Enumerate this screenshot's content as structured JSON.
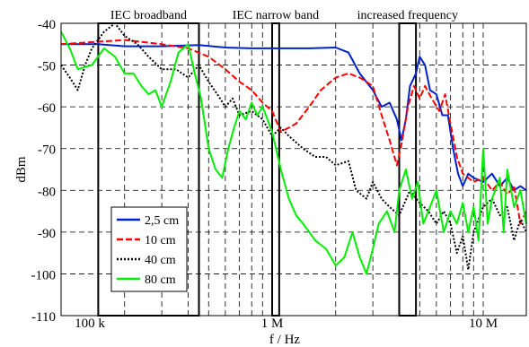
{
  "chart_data": {
    "type": "line",
    "xscale": "log",
    "xlim": [
      100000,
      16000000
    ],
    "ylim": [
      -110,
      -40
    ],
    "xlabel": "f / Hz",
    "ylabel": "dBm",
    "grid": true,
    "legend_position": "bottom-left",
    "x_tick_labels": [
      {
        "value": 100000,
        "label": "100 k"
      },
      {
        "value": 1000000,
        "label": "1 M"
      },
      {
        "value": 10000000,
        "label": "10 M"
      }
    ],
    "y_tick_labels": [
      "-40",
      "-50",
      "-60",
      "-70",
      "-80",
      "-90",
      "-100",
      "-110"
    ],
    "y_ticks": [
      -40,
      -50,
      -60,
      -70,
      -80,
      -90,
      -100,
      -110
    ],
    "annotations": [
      {
        "text": "IEC broadband",
        "x_range": [
          150000,
          450000
        ]
      },
      {
        "text": "IEC narrow band",
        "x_range": [
          1000000,
          1080000
        ]
      },
      {
        "text": "increased frequency",
        "x_range": [
          4000000,
          4800000
        ]
      }
    ],
    "series": [
      {
        "name": "2,5 cm",
        "color": "#0022cc",
        "dash": "solid",
        "points": [
          [
            100000,
            -45
          ],
          [
            150000,
            -45
          ],
          [
            200000,
            -45.5
          ],
          [
            300000,
            -45.5
          ],
          [
            450000,
            -45.2
          ],
          [
            600000,
            -45.8
          ],
          [
            800000,
            -46
          ],
          [
            1000000,
            -46
          ],
          [
            1500000,
            -46
          ],
          [
            2000000,
            -45.8
          ],
          [
            2300000,
            -47
          ],
          [
            2600000,
            -52
          ],
          [
            3000000,
            -56
          ],
          [
            3300000,
            -60
          ],
          [
            3600000,
            -59
          ],
          [
            3900000,
            -63
          ],
          [
            4100000,
            -68
          ],
          [
            4300000,
            -63
          ],
          [
            4500000,
            -55
          ],
          [
            4800000,
            -52
          ],
          [
            5000000,
            -48
          ],
          [
            5300000,
            -50
          ],
          [
            5600000,
            -56
          ],
          [
            6000000,
            -57
          ],
          [
            6400000,
            -62
          ],
          [
            6800000,
            -62
          ],
          [
            7200000,
            -70
          ],
          [
            7600000,
            -76
          ],
          [
            8000000,
            -79
          ],
          [
            8500000,
            -76
          ],
          [
            9000000,
            -77
          ],
          [
            10000000,
            -78
          ],
          [
            11000000,
            -76
          ],
          [
            12000000,
            -79
          ],
          [
            13000000,
            -77
          ],
          [
            14000000,
            -80
          ],
          [
            15000000,
            -79
          ],
          [
            16000000,
            -80
          ]
        ]
      },
      {
        "name": "10 cm",
        "color": "#ff0000",
        "dash": "dashed",
        "points": [
          [
            100000,
            -45
          ],
          [
            200000,
            -44
          ],
          [
            300000,
            -45
          ],
          [
            400000,
            -46
          ],
          [
            500000,
            -48
          ],
          [
            600000,
            -51
          ],
          [
            700000,
            -54
          ],
          [
            800000,
            -56
          ],
          [
            900000,
            -59
          ],
          [
            1000000,
            -61
          ],
          [
            1100000,
            -66
          ],
          [
            1200000,
            -65
          ],
          [
            1300000,
            -64
          ],
          [
            1500000,
            -60
          ],
          [
            1700000,
            -56
          ],
          [
            2000000,
            -53
          ],
          [
            2300000,
            -52
          ],
          [
            2600000,
            -53
          ],
          [
            3000000,
            -55
          ],
          [
            3300000,
            -62
          ],
          [
            3600000,
            -68
          ],
          [
            3900000,
            -74
          ],
          [
            4100000,
            -69
          ],
          [
            4400000,
            -60
          ],
          [
            4700000,
            -55
          ],
          [
            5000000,
            -58
          ],
          [
            5300000,
            -55
          ],
          [
            5700000,
            -58
          ],
          [
            6200000,
            -61
          ],
          [
            6600000,
            -57
          ],
          [
            7000000,
            -64
          ],
          [
            7500000,
            -72
          ],
          [
            8000000,
            -76
          ],
          [
            9000000,
            -78
          ],
          [
            10000000,
            -77
          ],
          [
            11000000,
            -80
          ],
          [
            12000000,
            -78
          ],
          [
            13000000,
            -81
          ],
          [
            14000000,
            -79
          ],
          [
            15000000,
            -88
          ],
          [
            16000000,
            -85
          ]
        ]
      },
      {
        "name": "40 cm",
        "color": "#000000",
        "dash": "dotted",
        "points": [
          [
            100000,
            -50
          ],
          [
            110000,
            -53
          ],
          [
            120000,
            -56
          ],
          [
            130000,
            -50
          ],
          [
            140000,
            -46
          ],
          [
            160000,
            -42
          ],
          [
            180000,
            -40
          ],
          [
            200000,
            -43
          ],
          [
            230000,
            -45
          ],
          [
            260000,
            -48
          ],
          [
            300000,
            -51
          ],
          [
            350000,
            -51
          ],
          [
            400000,
            -53
          ],
          [
            450000,
            -50
          ],
          [
            500000,
            -54
          ],
          [
            550000,
            -57
          ],
          [
            600000,
            -60
          ],
          [
            650000,
            -58
          ],
          [
            700000,
            -62
          ],
          [
            800000,
            -61
          ],
          [
            900000,
            -63
          ],
          [
            1000000,
            -67
          ],
          [
            1100000,
            -65
          ],
          [
            1200000,
            -67
          ],
          [
            1400000,
            -70
          ],
          [
            1600000,
            -72
          ],
          [
            1800000,
            -72
          ],
          [
            2000000,
            -74
          ],
          [
            2300000,
            -73
          ],
          [
            2500000,
            -80
          ],
          [
            2800000,
            -82
          ],
          [
            3000000,
            -78
          ],
          [
            3300000,
            -82
          ],
          [
            3600000,
            -84
          ],
          [
            4000000,
            -86
          ],
          [
            4500000,
            -80
          ],
          [
            5000000,
            -83
          ],
          [
            5500000,
            -85
          ],
          [
            6000000,
            -88
          ],
          [
            6500000,
            -85
          ],
          [
            7000000,
            -88
          ],
          [
            7500000,
            -95
          ],
          [
            8000000,
            -91
          ],
          [
            8500000,
            -99
          ],
          [
            9000000,
            -90
          ],
          [
            10000000,
            -84
          ],
          [
            11000000,
            -82
          ],
          [
            12000000,
            -86
          ],
          [
            13000000,
            -84
          ],
          [
            14000000,
            -92
          ],
          [
            15000000,
            -87
          ],
          [
            16000000,
            -90
          ]
        ]
      },
      {
        "name": "80 cm",
        "color": "#00ee00",
        "dash": "solid",
        "points": [
          [
            100000,
            -42
          ],
          [
            110000,
            -46
          ],
          [
            120000,
            -51
          ],
          [
            140000,
            -50
          ],
          [
            160000,
            -46
          ],
          [
            180000,
            -48
          ],
          [
            200000,
            -52
          ],
          [
            220000,
            -52
          ],
          [
            240000,
            -55
          ],
          [
            260000,
            -57
          ],
          [
            280000,
            -56
          ],
          [
            300000,
            -60
          ],
          [
            330000,
            -54
          ],
          [
            360000,
            -47
          ],
          [
            400000,
            -45
          ],
          [
            430000,
            -52
          ],
          [
            460000,
            -58
          ],
          [
            500000,
            -70
          ],
          [
            540000,
            -75
          ],
          [
            580000,
            -77
          ],
          [
            620000,
            -70
          ],
          [
            660000,
            -65
          ],
          [
            700000,
            -61
          ],
          [
            750000,
            -63
          ],
          [
            800000,
            -59
          ],
          [
            850000,
            -62
          ],
          [
            900000,
            -60
          ],
          [
            950000,
            -63
          ],
          [
            1000000,
            -66
          ],
          [
            1100000,
            -75
          ],
          [
            1200000,
            -82
          ],
          [
            1300000,
            -86
          ],
          [
            1400000,
            -88
          ],
          [
            1500000,
            -90
          ],
          [
            1600000,
            -92
          ],
          [
            1800000,
            -94
          ],
          [
            2000000,
            -98
          ],
          [
            2200000,
            -96
          ],
          [
            2400000,
            -90
          ],
          [
            2600000,
            -96
          ],
          [
            2800000,
            -100
          ],
          [
            3000000,
            -94
          ],
          [
            3200000,
            -88
          ],
          [
            3500000,
            -85
          ],
          [
            3800000,
            -90
          ],
          [
            4000000,
            -80
          ],
          [
            4300000,
            -75
          ],
          [
            4600000,
            -82
          ],
          [
            4900000,
            -78
          ],
          [
            5200000,
            -88
          ],
          [
            5600000,
            -84
          ],
          [
            6000000,
            -80
          ],
          [
            6500000,
            -90
          ],
          [
            7000000,
            -85
          ],
          [
            7500000,
            -88
          ],
          [
            8000000,
            -83
          ],
          [
            8500000,
            -90
          ],
          [
            9000000,
            -84
          ],
          [
            9500000,
            -92
          ],
          [
            10000000,
            -70
          ],
          [
            10500000,
            -88
          ],
          [
            11000000,
            -82
          ],
          [
            12000000,
            -77
          ],
          [
            12500000,
            -90
          ],
          [
            13000000,
            -75
          ],
          [
            14000000,
            -84
          ],
          [
            15000000,
            -80
          ],
          [
            16000000,
            -88
          ]
        ]
      }
    ]
  }
}
